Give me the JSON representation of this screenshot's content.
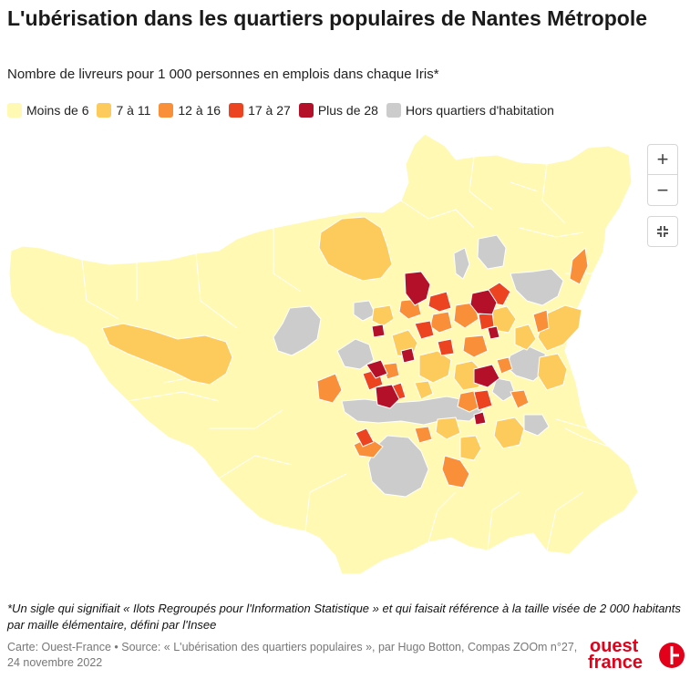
{
  "header": {
    "title": "L'ubérisation dans les quartiers populaires de Nantes Métropole",
    "subtitle": "Nombre de livreurs pour 1 000 personnes en emplois dans chaque Iris*"
  },
  "legend": {
    "items": [
      {
        "label": "Moins de 6",
        "color": "#fff9b3"
      },
      {
        "label": "7 à 11",
        "color": "#fdcb5c"
      },
      {
        "label": "12 à 16",
        "color": "#fa8f3a"
      },
      {
        "label": "17 à 27",
        "color": "#ec4321"
      },
      {
        "label": "Plus de 28",
        "color": "#b4102a"
      },
      {
        "label": "Hors quartiers d'habitation",
        "color": "#cccccc"
      }
    ]
  },
  "map": {
    "colors": {
      "base": "#fff9b3",
      "border": "#ffffff",
      "c1": "#fdcb5c",
      "c2": "#fa8f3a",
      "c3": "#ec4321",
      "c4": "#b4102a",
      "grey": "#cccccc"
    }
  },
  "controls": {
    "zoom_in": "+",
    "zoom_out": "−",
    "fullscreen_icon": "fullscreen-icon"
  },
  "footnote": "*Un sigle qui signifiait « Ilots Regroupés pour l'Information Statistique » et qui faisait référence à la taille visée de 2 000 habitants par maille élémentaire, défini par l'Insee",
  "source": "Carte: Ouest-France • Source: « L'ubérisation des quartiers populaires », par Hugo Botton, Compas ZOOm n°27, 24 novembre 2022",
  "logo": {
    "line1": "ouest",
    "line2": "france",
    "brand_color": "#e2001a"
  }
}
